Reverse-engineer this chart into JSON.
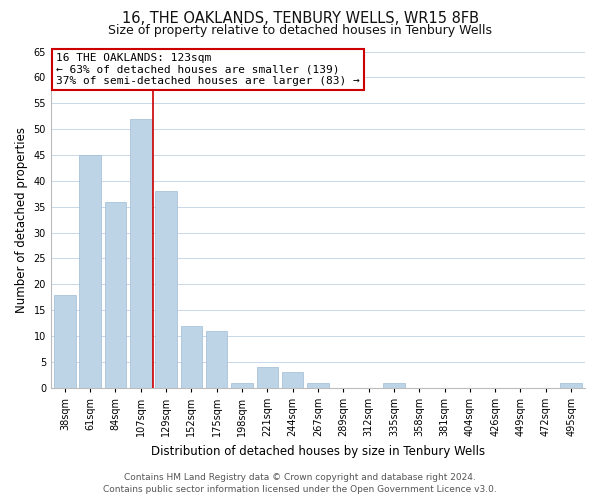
{
  "title": "16, THE OAKLANDS, TENBURY WELLS, WR15 8FB",
  "subtitle": "Size of property relative to detached houses in Tenbury Wells",
  "xlabel": "Distribution of detached houses by size in Tenbury Wells",
  "ylabel": "Number of detached properties",
  "bar_labels": [
    "38sqm",
    "61sqm",
    "84sqm",
    "107sqm",
    "129sqm",
    "152sqm",
    "175sqm",
    "198sqm",
    "221sqm",
    "244sqm",
    "267sqm",
    "289sqm",
    "312sqm",
    "335sqm",
    "358sqm",
    "381sqm",
    "404sqm",
    "426sqm",
    "449sqm",
    "472sqm",
    "495sqm"
  ],
  "bar_values": [
    18,
    45,
    36,
    52,
    38,
    12,
    11,
    1,
    4,
    3,
    1,
    0,
    0,
    1,
    0,
    0,
    0,
    0,
    0,
    0,
    1
  ],
  "bar_color": "#bdd4e7",
  "bar_edge_color": "#a0bcd5",
  "red_line_x": 3.5,
  "ylim": [
    0,
    65
  ],
  "yticks": [
    0,
    5,
    10,
    15,
    20,
    25,
    30,
    35,
    40,
    45,
    50,
    55,
    60,
    65
  ],
  "annotation_title": "16 THE OAKLANDS: 123sqm",
  "annotation_line1": "← 63% of detached houses are smaller (139)",
  "annotation_line2": "37% of semi-detached houses are larger (83) →",
  "annotation_box_facecolor": "#ffffff",
  "annotation_box_edgecolor": "#cc0000",
  "footer_line1": "Contains HM Land Registry data © Crown copyright and database right 2024.",
  "footer_line2": "Contains public sector information licensed under the Open Government Licence v3.0.",
  "background_color": "#ffffff",
  "grid_color": "#c8d8e8",
  "title_fontsize": 10.5,
  "subtitle_fontsize": 9,
  "axis_label_fontsize": 8.5,
  "tick_fontsize": 7,
  "annotation_fontsize": 8,
  "footer_fontsize": 6.5
}
